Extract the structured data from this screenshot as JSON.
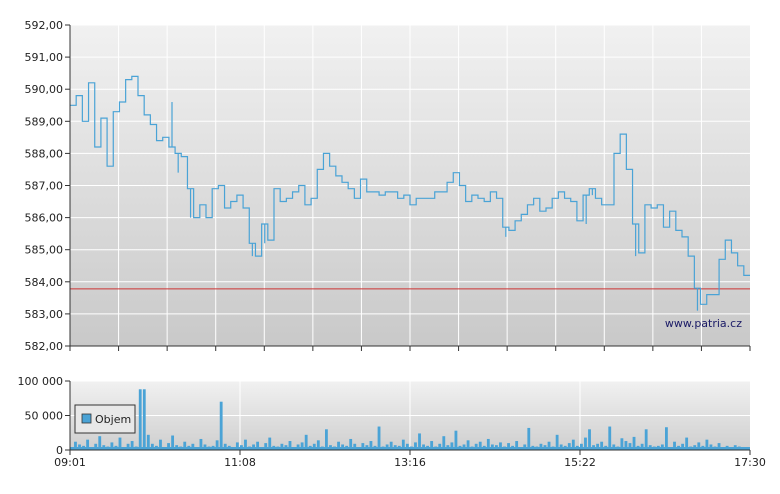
{
  "chart_data": [
    {
      "type": "line",
      "y_ticks": [
        "592,00",
        "591,00",
        "590,00",
        "589,00",
        "588,00",
        "587,00",
        "586,00",
        "585,00",
        "584,00",
        "583,00",
        "582,00"
      ],
      "ylim": [
        582,
        592
      ],
      "x_time_range": [
        "09:01",
        "17:30"
      ],
      "reference_line": {
        "value": 583.78,
        "color": "#cc3333"
      },
      "line_color": "#4aa3d6",
      "grid": true,
      "watermark": "www.patria.cz",
      "series": [
        {
          "values": [
            589.5,
            589.8,
            589.0,
            590.2,
            588.2,
            589.1,
            587.6,
            589.3,
            589.6,
            590.3,
            590.4,
            589.8,
            589.2,
            588.9,
            588.4,
            588.5,
            588.2,
            588.0,
            587.9,
            586.9,
            586.0,
            586.4,
            586.0,
            586.9,
            587.0,
            586.3,
            586.5,
            586.7,
            586.3,
            585.2,
            584.8,
            585.8,
            585.3,
            586.9,
            586.5,
            586.6,
            586.8,
            587.0,
            586.4,
            586.6,
            587.5,
            588.0,
            587.6,
            587.3,
            587.1,
            586.9,
            586.6,
            587.2,
            586.8,
            586.8,
            586.7,
            586.8,
            586.8,
            586.6,
            586.7,
            586.4,
            586.6,
            586.6,
            586.6,
            586.8,
            586.8,
            587.1,
            587.4,
            587.0,
            586.5,
            586.7,
            586.6,
            586.5,
            586.8,
            586.6,
            585.7,
            585.6,
            585.9,
            586.1,
            586.4,
            586.6,
            586.2,
            586.3,
            586.6,
            586.8,
            586.6,
            586.5,
            585.9,
            586.7,
            586.9,
            586.6,
            586.4,
            586.4,
            588.0,
            588.6,
            587.5,
            585.8,
            584.9,
            586.4,
            586.3,
            586.4,
            585.7,
            586.2,
            585.6,
            585.4,
            584.8,
            583.8,
            583.3,
            583.6,
            583.6,
            584.7,
            585.3,
            584.9,
            584.5,
            584.2,
            584.2
          ],
          "spikes": [
            [
              16,
              589.6
            ],
            [
              17,
              587.4
            ],
            [
              19,
              586.0
            ],
            [
              29,
              584.8
            ],
            [
              31,
              585.2
            ],
            [
              70,
              585.4
            ],
            [
              83,
              585.8
            ],
            [
              84,
              586.7
            ],
            [
              91,
              584.8
            ],
            [
              101,
              583.1
            ]
          ]
        }
      ],
      "series_labels": [],
      "label": ""
    },
    {
      "type": "bar",
      "title": "",
      "y_ticks": [
        "100 000",
        "50 000",
        "0"
      ],
      "ylim": [
        0,
        100000
      ],
      "x_ticks": [
        "09:01",
        "11:08",
        "13:16",
        "15:22",
        "17:30"
      ],
      "bar_color": "#4aa3d6",
      "legend": {
        "label": "Objem",
        "placement": "top-left"
      },
      "grid": true,
      "series": [
        {
          "name": "Objem",
          "baseline": [
            3000,
            12000,
            8000,
            6000,
            15000,
            4000,
            9000,
            20000,
            7000,
            5000,
            11000,
            6000,
            18000,
            4000,
            9000,
            13000,
            5000,
            88000,
            88000,
            22000,
            9000,
            6000,
            15000,
            4000,
            10000,
            21000,
            7000,
            5000,
            12000,
            6000,
            9000,
            4000,
            16000,
            8000,
            5000,
            6000,
            14000,
            70000,
            9000,
            6000,
            4000,
            11000,
            7000,
            15000,
            5000,
            8000,
            12000,
            3000,
            10000,
            18000,
            6000,
            5000,
            9000,
            7000,
            13000,
            4000,
            8000,
            11000,
            22000,
            6000,
            9000,
            14000,
            5000,
            30000,
            7000,
            5000,
            12000,
            8000,
            6000,
            16000,
            9000,
            4000,
            10000,
            7000,
            13000,
            6000,
            34000,
            5000,
            8000,
            12000,
            7000,
            6000,
            15000,
            9000,
            5000,
            11000,
            24000,
            8000,
            6000,
            13000,
            5000,
            9000,
            20000,
            7000,
            11000,
            28000,
            6000,
            8000,
            14000,
            5000,
            9000,
            12000,
            6000,
            16000,
            8000,
            7000,
            11000,
            5000,
            10000,
            6000,
            13000,
            4000,
            8000,
            32000,
            6000,
            5000,
            9000,
            7000,
            12000,
            5000,
            22000,
            8000,
            6000,
            10000,
            15000,
            6000,
            9000,
            18000,
            30000,
            7000,
            9000,
            12000,
            6000,
            34000,
            8000,
            5000,
            17000,
            13000,
            10000,
            19000,
            6000,
            9000,
            30000,
            7000,
            5000,
            6000,
            8000,
            33000,
            4000,
            12000,
            6000,
            9000,
            18000,
            5000,
            7000,
            11000,
            6000,
            15000,
            8000,
            5000,
            10000,
            3000,
            6000,
            4000,
            7000,
            5000,
            3000,
            4000
          ]
        }
      ]
    }
  ]
}
